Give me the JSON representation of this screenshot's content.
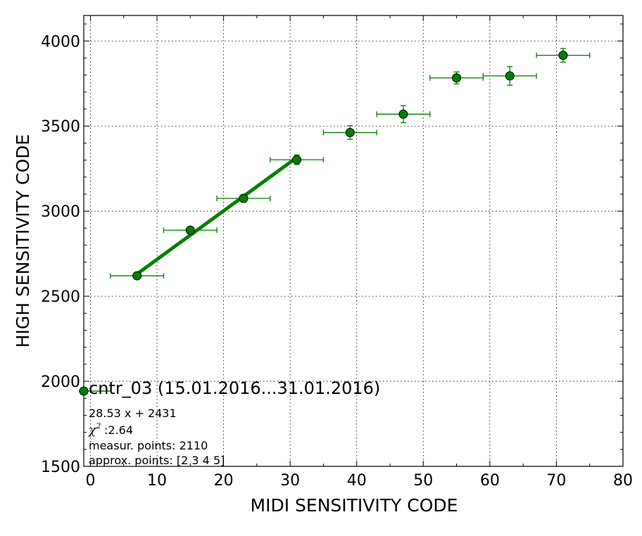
{
  "chart_data": {
    "type": "scatter",
    "title": "",
    "xlabel": "MIDI SENSITIVITY CODE",
    "ylabel": "HIGH SENSITIVITY CODE",
    "xlim": [
      -1,
      80
    ],
    "ylim": [
      1500,
      4150
    ],
    "x_ticks": [
      0,
      10,
      20,
      30,
      40,
      50,
      60,
      70,
      80
    ],
    "y_ticks": [
      1500,
      2000,
      2500,
      3000,
      3500,
      4000
    ],
    "x_tick_labels": [
      "0",
      "10",
      "20",
      "30",
      "40",
      "50",
      "60",
      "70",
      "80"
    ],
    "y_tick_labels": [
      "1500",
      "2000",
      "2500",
      "3000",
      "3500",
      "4000"
    ],
    "grid": true,
    "series": [
      {
        "name": "cntr_03 (15.01.2016...31.01.2016)",
        "color": "#008000",
        "marker": "circle",
        "points": [
          {
            "x": 7,
            "y": 2620,
            "xerr": 4,
            "yerr": 12
          },
          {
            "x": 15,
            "y": 2888,
            "xerr": 4,
            "yerr": 18
          },
          {
            "x": 23,
            "y": 3075,
            "xerr": 4,
            "yerr": 22
          },
          {
            "x": 31,
            "y": 3302,
            "xerr": 4,
            "yerr": 28
          },
          {
            "x": 39,
            "y": 3462,
            "xerr": 4,
            "yerr": 40
          },
          {
            "x": 47,
            "y": 3570,
            "xerr": 4,
            "yerr": 50
          },
          {
            "x": 55,
            "y": 3783,
            "xerr": 4,
            "yerr": 35
          },
          {
            "x": 63,
            "y": 3795,
            "xerr": 4,
            "yerr": 55
          },
          {
            "x": 71,
            "y": 3916,
            "xerr": 4,
            "yerr": 40
          }
        ]
      }
    ],
    "fit": {
      "slope": 28.53,
      "intercept": 2431,
      "x_range": [
        7,
        31
      ],
      "color": "#008000"
    },
    "legend": {
      "label": "cntr_03 (15.01.2016...31.01.2016)",
      "fit_text": "28.53 x + 2431",
      "chi_text": ":2.64",
      "measur_text": "measur. points: 2110",
      "approx_text": "approx. points: [2 3 4 5]",
      "placement": "lower-left"
    }
  }
}
